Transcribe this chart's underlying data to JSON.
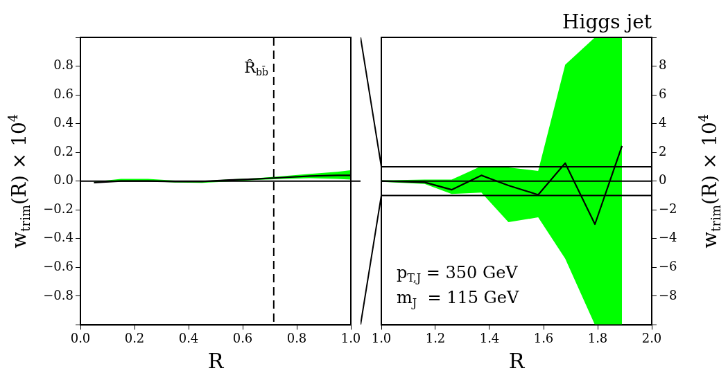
{
  "chart_data": [
    {
      "type": "line",
      "xlabel": "R",
      "ylabel": "w$_{trim}$(R) × 10$^{4}$",
      "xlim": [
        0,
        1
      ],
      "xticks": [
        {
          "value": 0,
          "label": "0.0"
        },
        {
          "value": 0.2,
          "label": "0.2"
        },
        {
          "value": 0.4,
          "label": "0.4"
        },
        {
          "value": 0.6,
          "label": "0.6"
        },
        {
          "value": 0.8,
          "label": "0.8"
        },
        {
          "value": 1,
          "label": "1.0"
        }
      ],
      "ylim": [
        -1,
        1
      ],
      "yticks": [
        {
          "value": 1,
          "label": null
        },
        {
          "value": 0.8,
          "label": "0.8"
        },
        {
          "value": 0.6,
          "label": "0.6"
        },
        {
          "value": 0.4,
          "label": "0.4"
        },
        {
          "value": 0.2,
          "label": "0.2"
        },
        {
          "value": 0,
          "label": "0.0"
        },
        {
          "value": -0.2,
          "label": "−0.2"
        },
        {
          "value": -0.4,
          "label": "−0.4"
        },
        {
          "value": -0.6,
          "label": "−0.6"
        },
        {
          "value": -0.8,
          "label": "−0.8"
        },
        {
          "value": -1,
          "label": null
        }
      ],
      "series": [
        {
          "color": "#000000",
          "x": [
            0.05,
            0.15,
            0.25,
            0.35,
            0.45,
            0.55,
            0.65,
            0.75,
            0.85,
            0.95,
            1.0
          ],
          "values": [
            -0.01,
            0.0,
            0.0,
            -0.003,
            -0.003,
            0.008,
            0.015,
            0.025,
            0.035,
            0.04,
            0.04
          ],
          "lower": [
            -0.012,
            -0.003,
            0.0,
            -0.01,
            -0.012,
            -0.003,
            0.008,
            0.015,
            0.02,
            0.015,
            0.01
          ],
          "upper": [
            -0.005,
            0.015,
            0.015,
            0.003,
            0.0,
            0.012,
            0.02,
            0.035,
            0.05,
            0.065,
            0.075
          ]
        }
      ],
      "ref_lines": [
        {
          "axis": "y",
          "value": 0,
          "color": "#000000",
          "line_style": "solid"
        },
        {
          "axis": "x",
          "value": 0.715,
          "label": "R̂$_{bb̄}$",
          "color": "#000000",
          "line_style": "dashed"
        }
      ],
      "legend": false,
      "grid": false
    },
    {
      "type": "line",
      "title": "Higgs jet",
      "xlabel": "R",
      "y2label": "w$_{trim}$(R) × 10$^{4}$",
      "xlim": [
        1,
        2
      ],
      "xticks": [
        {
          "value": 1,
          "label": "1.0"
        },
        {
          "value": 1.2,
          "label": "1.2"
        },
        {
          "value": 1.4,
          "label": "1.4"
        },
        {
          "value": 1.6,
          "label": "1.6"
        },
        {
          "value": 1.8,
          "label": "1.8"
        },
        {
          "value": 2,
          "label": "2.0"
        }
      ],
      "y2lim": [
        -10,
        10
      ],
      "y2ticks": [
        {
          "value": 10,
          "label": null
        },
        8,
        6,
        4,
        2,
        0,
        {
          "value": -2,
          "label": "−2"
        },
        {
          "value": -4,
          "label": "−4"
        },
        {
          "value": -6,
          "label": "−6"
        },
        {
          "value": -8,
          "label": "−8"
        },
        {
          "value": -10,
          "label": null
        }
      ],
      "series": [
        {
          "axis": "y2",
          "color": "#000000",
          "x": [
            1.0,
            1.16,
            1.26,
            1.37,
            1.47,
            1.58,
            1.68,
            1.79,
            1.89
          ],
          "values": [
            0,
            -0.08,
            -0.6,
            0.4,
            -0.3,
            -0.95,
            1.25,
            -3,
            2.45
          ],
          "lower": [
            -0.05,
            -0.2,
            -0.89,
            -0.8,
            -2.86,
            -2.52,
            -5.4,
            -10,
            -10
          ],
          "upper": [
            0.05,
            0.1,
            0.1,
            1.05,
            0.95,
            0.71,
            8.1,
            10,
            10
          ]
        }
      ],
      "ref_lines": [
        {
          "axis": "y2",
          "value": 1,
          "color": "#000000",
          "line_style": "solid"
        },
        {
          "axis": "y2",
          "value": 0,
          "color": "#000000",
          "line_style": "solid"
        },
        {
          "axis": "y2",
          "value": -1,
          "color": "#000000",
          "line_style": "solid"
        }
      ],
      "annotations": [
        "p$_{T,J}$ = 350 GeV",
        "m$_{J}$  = 115 GeV"
      ],
      "legend": false,
      "grid": false
    }
  ]
}
